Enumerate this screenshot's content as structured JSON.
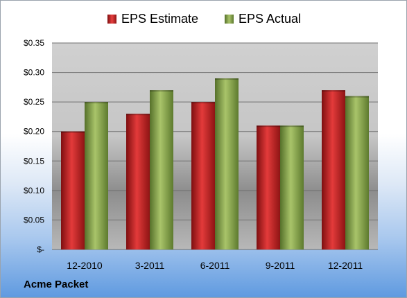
{
  "chart_data": {
    "type": "bar",
    "categories": [
      "12-2010",
      "3-2011",
      "6-2011",
      "9-2011",
      "12-2011"
    ],
    "series": [
      {
        "name": "EPS Estimate",
        "values": [
          0.2,
          0.23,
          0.25,
          0.21,
          0.27
        ],
        "color": "#c8201f"
      },
      {
        "name": "EPS Actual",
        "values": [
          0.25,
          0.27,
          0.29,
          0.21,
          0.26
        ],
        "color": "#8fac4f"
      }
    ],
    "ylim": [
      0,
      0.35
    ],
    "yticks": [
      {
        "value": 0,
        "label": "$-"
      },
      {
        "value": 0.05,
        "label": "$0.05"
      },
      {
        "value": 0.1,
        "label": "$0.10"
      },
      {
        "value": 0.15,
        "label": "$0.15"
      },
      {
        "value": 0.2,
        "label": "$0.20"
      },
      {
        "value": 0.25,
        "label": "$0.25"
      },
      {
        "value": 0.3,
        "label": "$0.30"
      },
      {
        "value": 0.35,
        "label": "$0.35"
      }
    ],
    "grid": true,
    "legend_position": "top-center"
  },
  "company": "Acme Packet"
}
